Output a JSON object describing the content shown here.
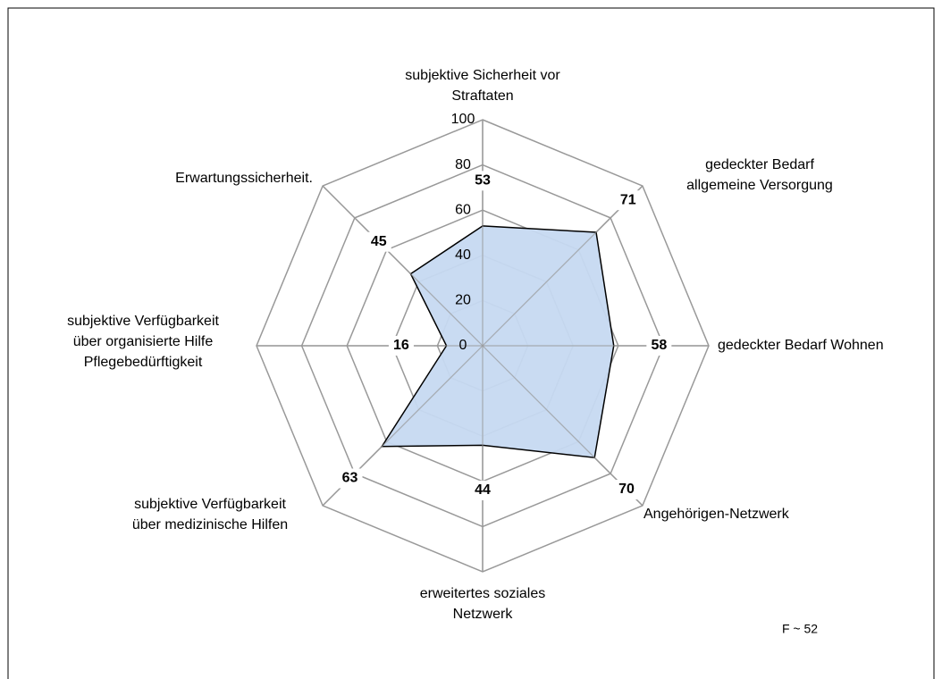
{
  "chart_data": {
    "type": "radar",
    "categories": [
      "subjektive Sicherheit vor\nStraftaten",
      "gedeckter Bedarf\nallgemeine Versorgung",
      "gedeckter Bedarf Wohnen",
      "Angehörigen-Netzwerk",
      "erweitertes soziales\nNetzwerk",
      "subjektive Verfügbarkeit\nüber medizinische Hilfen",
      "subjektive Verfügbarkeit\nüber organisierte Hilfe\nPflegebedürftigkeit",
      "Erwartungssicherheit."
    ],
    "values": [
      53,
      71,
      58,
      70,
      44,
      63,
      16,
      45
    ],
    "color": "#c6d9f1",
    "ylim": [
      0,
      100
    ],
    "yticks": [
      0,
      20,
      40,
      60,
      80,
      100
    ],
    "grid": true,
    "annotation": "F ~ 52"
  }
}
